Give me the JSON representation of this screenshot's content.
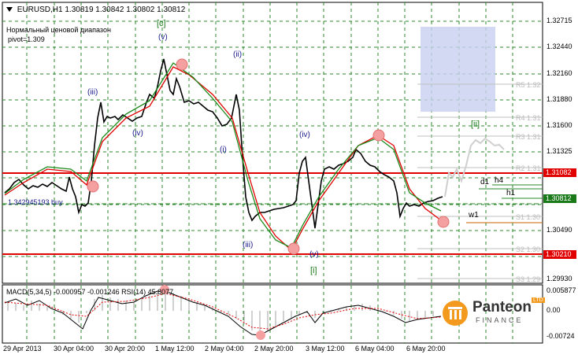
{
  "header": {
    "symbol": "EURUSD,H1",
    "ohlc": "1.30819 1.30842 1.30802 1.30812"
  },
  "notes": {
    "range_label": "Нормальный ценовой диапазон",
    "pivot_label": "pivot=1.309",
    "buy_label": "1.342945193 buy"
  },
  "price_axis": {
    "ticks": [
      "1.32715",
      "1.32440",
      "1.32160",
      "1.31880",
      "1.31600",
      "1.31325",
      "1.30490",
      "1.29930"
    ],
    "highlight_red_upper": "1.31082",
    "highlight_green_current": "1.30812",
    "highlight_red_lower": "1.30210"
  },
  "pivot_labels": [
    "R5 1.32",
    "R4 1.31",
    "R3 1.31",
    "R2 1.31",
    "S1 1.30",
    "S2 1.30",
    "S3 1.29"
  ],
  "levels": {
    "d1": "d1",
    "h4": "h4",
    "h1": "h1",
    "w1": "w1"
  },
  "waves": {
    "c": "[c]",
    "v_top": "(v)",
    "iii_left": "(iii)",
    "iv_left": "(iv)",
    "ii": "(ii)",
    "i": "(i)",
    "iii_low": "(iii)",
    "iv_mid": "(iv)",
    "v_low": "(v)",
    "i_bracket": "[i]",
    "ii_bracket": "[ii]"
  },
  "indicator": {
    "label": "MACD(5,34,5) -0.000957 -0.001246 RSI(14) 45.8077",
    "ticks": [
      "0.005877",
      "0.00",
      "-0.00724"
    ]
  },
  "time_axis": [
    "29 Apr 2013",
    "30 Apr 04:00",
    "30 Apr 20:00",
    "1 May 12:00",
    "2 May 04:00",
    "2 May 20:00",
    "3 May 12:00",
    "6 May 04:00",
    "6 May 20:00"
  ],
  "logo": {
    "name": "Panteon",
    "sub": "FINANCE",
    "badge": "LTD"
  }
}
